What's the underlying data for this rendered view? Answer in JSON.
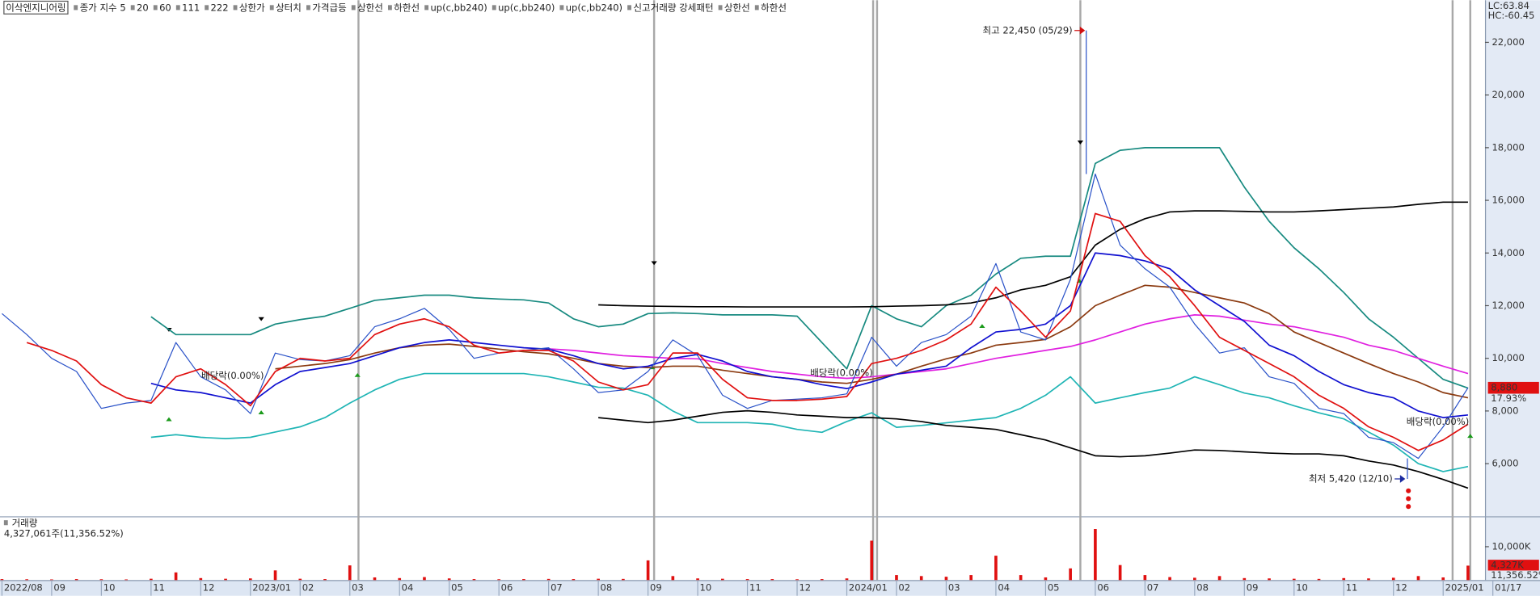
{
  "header": {
    "title": "이삭엔지니어링",
    "legend": [
      {
        "text": "종가 지수 5",
        "color": "#000000"
      },
      {
        "text": "20",
        "color": "#e01010"
      },
      {
        "text": "60",
        "color": "#1010d0"
      },
      {
        "text": "111",
        "color": "#8b3a10"
      },
      {
        "text": "222",
        "color": "#e020e0"
      },
      {
        "text": "상한가",
        "color": "#000000"
      },
      {
        "text": "상터치",
        "color": "#e01010"
      },
      {
        "text": "가격급등",
        "color": "#0a8a0a"
      },
      {
        "text": "상한선",
        "color": "#000000"
      },
      {
        "text": "하한선",
        "color": "#000000"
      },
      {
        "text": "up(c,bb240)",
        "color": "#c01010"
      },
      {
        "text": "up(c,bb240)",
        "color": "#c01010"
      },
      {
        "text": "up(c,bb240)",
        "color": "#c01010"
      },
      {
        "text": "신고거래량 강세패턴",
        "color": "#000000"
      },
      {
        "text": "상한선",
        "color": "#178a80"
      },
      {
        "text": "하한선",
        "color": "#20b5b5"
      }
    ]
  },
  "axis_stats": {
    "lc": "LC:63.84",
    "hc": "HC:-60.45"
  },
  "chart_data": [
    {
      "type": "line",
      "categories": [
        "2022/08",
        null,
        "09",
        null,
        "10",
        null,
        "11",
        null,
        "12",
        null,
        "2023/01",
        null,
        "02",
        null,
        "03",
        null,
        "04",
        null,
        "05",
        null,
        "06",
        null,
        "07",
        null,
        "08",
        null,
        "09",
        null,
        "10",
        null,
        "11",
        null,
        "12",
        null,
        "2024/01",
        null,
        "02",
        null,
        "03",
        null,
        "04",
        null,
        "05",
        null,
        "06",
        null,
        "07",
        null,
        "08",
        null,
        "09",
        null,
        "10",
        null,
        "11",
        null,
        "12",
        null,
        "2025/01",
        null,
        "01/17"
      ],
      "series": [
        {
          "color": "#178a80",
          "values": [
            null,
            null,
            null,
            null,
            null,
            null,
            11580,
            10900,
            10900,
            10900,
            10900,
            11300,
            11470,
            11600,
            11900,
            12200,
            12300,
            12400,
            12400,
            12300,
            12250,
            12220,
            12100,
            11500,
            11200,
            11300,
            11700,
            11730,
            11700,
            11650,
            11650,
            11650,
            11600,
            10600,
            9600,
            12000,
            11500,
            11200,
            12000,
            12400,
            13200,
            13800,
            13880,
            13880,
            17400,
            17900,
            18000,
            18000,
            18000,
            18000,
            16500,
            15200,
            14200,
            13400,
            12500,
            11500,
            10800,
            10000,
            9200,
            8870,
            null
          ]
        },
        {
          "color": "#20b5b5",
          "values": [
            null,
            null,
            null,
            null,
            null,
            null,
            7000,
            7100,
            7000,
            6950,
            7000,
            7200,
            7400,
            7750,
            8300,
            8800,
            9200,
            9420,
            9420,
            9420,
            9420,
            9420,
            9300,
            9100,
            8900,
            8870,
            8600,
            8000,
            7560,
            7560,
            7560,
            7500,
            7300,
            7190,
            7600,
            7930,
            7380,
            7450,
            7550,
            7650,
            7750,
            8100,
            8600,
            9300,
            8300,
            8500,
            8700,
            8870,
            9300,
            9000,
            8680,
            8500,
            8200,
            7930,
            7700,
            7200,
            6700,
            6000,
            5700,
            5890,
            null
          ]
        },
        {
          "color": "#000000",
          "values": [
            null,
            null,
            null,
            null,
            null,
            null,
            null,
            null,
            null,
            null,
            null,
            null,
            null,
            null,
            null,
            null,
            null,
            null,
            null,
            null,
            null,
            null,
            null,
            null,
            12030,
            12000,
            11980,
            11970,
            11960,
            11960,
            11950,
            11950,
            11950,
            11950,
            11950,
            11960,
            11980,
            12000,
            12030,
            12100,
            12300,
            12600,
            12770,
            13100,
            14300,
            14900,
            15300,
            15560,
            15600,
            15600,
            15580,
            15560,
            15560,
            15600,
            15650,
            15700,
            15750,
            15850,
            15930,
            15930,
            null
          ]
        },
        {
          "color": "#000000",
          "values": [
            null,
            null,
            null,
            null,
            null,
            null,
            null,
            null,
            null,
            null,
            null,
            null,
            null,
            null,
            null,
            null,
            null,
            null,
            null,
            null,
            null,
            null,
            null,
            null,
            7750,
            7650,
            7560,
            7650,
            7800,
            7950,
            8010,
            7950,
            7850,
            7800,
            7750,
            7750,
            7700,
            7600,
            7450,
            7380,
            7300,
            7100,
            6900,
            6600,
            6300,
            6260,
            6300,
            6400,
            6520,
            6500,
            6450,
            6400,
            6370,
            6370,
            6300,
            6100,
            5950,
            5700,
            5400,
            5070,
            null
          ]
        },
        {
          "color": "#e020e0",
          "values": [
            null,
            null,
            null,
            null,
            null,
            null,
            null,
            null,
            null,
            null,
            null,
            null,
            null,
            null,
            null,
            null,
            null,
            null,
            null,
            null,
            null,
            null,
            10360,
            10300,
            10200,
            10100,
            10050,
            10000,
            9980,
            9800,
            9650,
            9500,
            9400,
            9300,
            9240,
            9300,
            9400,
            9500,
            9600,
            9800,
            10000,
            10150,
            10300,
            10450,
            10700,
            11000,
            11300,
            11500,
            11650,
            11600,
            11450,
            11300,
            11200,
            11000,
            10800,
            10500,
            10300,
            10000,
            9700,
            9420,
            null
          ]
        },
        {
          "color": "#8b3a10",
          "values": [
            null,
            null,
            null,
            null,
            null,
            null,
            null,
            null,
            null,
            null,
            null,
            9600,
            9700,
            9800,
            9950,
            10200,
            10400,
            10500,
            10540,
            10450,
            10350,
            10250,
            10170,
            10000,
            9800,
            9700,
            9650,
            9700,
            9700,
            9550,
            9420,
            9300,
            9200,
            9100,
            9050,
            9200,
            9400,
            9700,
            9980,
            10200,
            10500,
            10600,
            10720,
            11200,
            12000,
            12400,
            12770,
            12700,
            12500,
            12300,
            12100,
            11700,
            11000,
            10600,
            10200,
            9800,
            9420,
            9100,
            8700,
            8500,
            null
          ]
        },
        {
          "color": "#1010d0",
          "values": [
            null,
            null,
            null,
            null,
            null,
            null,
            9050,
            8800,
            8700,
            8500,
            8300,
            9000,
            9500,
            9650,
            9800,
            10100,
            10400,
            10600,
            10700,
            10600,
            10500,
            10400,
            10350,
            10100,
            9800,
            9600,
            9700,
            10000,
            10150,
            9900,
            9500,
            9300,
            9200,
            9000,
            8850,
            9100,
            9400,
            9550,
            9700,
            10400,
            11000,
            11100,
            11300,
            12000,
            14000,
            13900,
            13700,
            13400,
            12600,
            12000,
            11400,
            10500,
            10100,
            9500,
            9000,
            8700,
            8500,
            8000,
            7750,
            7850,
            null
          ]
        },
        {
          "color": "#2a52c8",
          "values": [
            11700,
            10900,
            10000,
            9500,
            8100,
            8300,
            8400,
            10600,
            9300,
            8800,
            7900,
            10200,
            9950,
            9900,
            10100,
            11200,
            11500,
            11900,
            11100,
            10000,
            10200,
            10300,
            10400,
            9600,
            8700,
            8800,
            9500,
            10700,
            10100,
            8600,
            8100,
            8400,
            8450,
            8500,
            8650,
            10800,
            9700,
            10600,
            10900,
            11600,
            13600,
            11000,
            10700,
            13000,
            17000,
            14300,
            13400,
            12700,
            11300,
            10200,
            10400,
            9300,
            9050,
            8100,
            7900,
            7000,
            6800,
            6200,
            7400,
            8880,
            null
          ]
        },
        {
          "color": "#e01010",
          "values": [
            null,
            10600,
            10300,
            9900,
            9000,
            8500,
            8300,
            9300,
            9600,
            9000,
            8200,
            9500,
            10000,
            9900,
            10000,
            10900,
            11300,
            11500,
            11200,
            10500,
            10200,
            10300,
            10300,
            9900,
            9100,
            8800,
            9000,
            10200,
            10200,
            9200,
            8500,
            8400,
            8400,
            8450,
            8550,
            9800,
            10000,
            10300,
            10700,
            11300,
            12700,
            11800,
            10800,
            11800,
            15500,
            15200,
            13900,
            13100,
            12000,
            10800,
            10300,
            9800,
            9300,
            8600,
            8100,
            7400,
            7000,
            6500,
            6900,
            7500,
            null
          ]
        }
      ],
      "ylim": [
        4000,
        23600
      ],
      "yticks": [
        {
          "value": 6000,
          "label": "6,000"
        },
        {
          "value": 8000,
          "label": "8,000"
        },
        {
          "value": 10000,
          "label": "10,000"
        },
        {
          "value": 12000,
          "label": "12,000"
        },
        {
          "value": 14000,
          "label": "14,000"
        },
        {
          "value": 16000,
          "label": "16,000"
        },
        {
          "value": 18000,
          "label": "18,000"
        },
        {
          "value": 20000,
          "label": "20,000"
        },
        {
          "value": 22000,
          "label": "22,000"
        }
      ],
      "annotations": [
        {
          "text": "최고 22,450 (05/29)",
          "value": 22450
        },
        {
          "text": "최저 5,420 (12/10)",
          "value": 5420
        },
        {
          "text": "배당락(0.00%)"
        },
        {
          "text": "배당락(0.00%)"
        },
        {
          "text": "배당락(0.00%)"
        }
      ],
      "last_price": {
        "value": 8880,
        "label": "8,880"
      },
      "change": "17.93%"
    },
    {
      "type": "bar",
      "title": "거래량",
      "subtitle": "4,327,061주(11,356.52%)",
      "color": "#e01010",
      "values": [
        300,
        250,
        200,
        300,
        250,
        200,
        400,
        2300,
        600,
        400,
        500,
        2900,
        400,
        300,
        4400,
        800,
        600,
        900,
        500,
        300,
        250,
        300,
        350,
        300,
        400,
        350,
        5900,
        1200,
        500,
        400,
        300,
        300,
        250,
        300,
        500,
        11800,
        1500,
        1200,
        1000,
        1500,
        7300,
        1500,
        800,
        3500,
        15300,
        4500,
        1500,
        900,
        700,
        1200,
        600,
        500,
        400,
        350,
        600,
        500,
        700,
        1200,
        800,
        4327,
        null
      ],
      "ylim": [
        0,
        18800
      ],
      "yticks": [
        {
          "value": 10000,
          "label": "10,000K"
        }
      ],
      "last_value": {
        "value": 4327,
        "label": "4,327K"
      },
      "change": "11,356.52%"
    }
  ]
}
